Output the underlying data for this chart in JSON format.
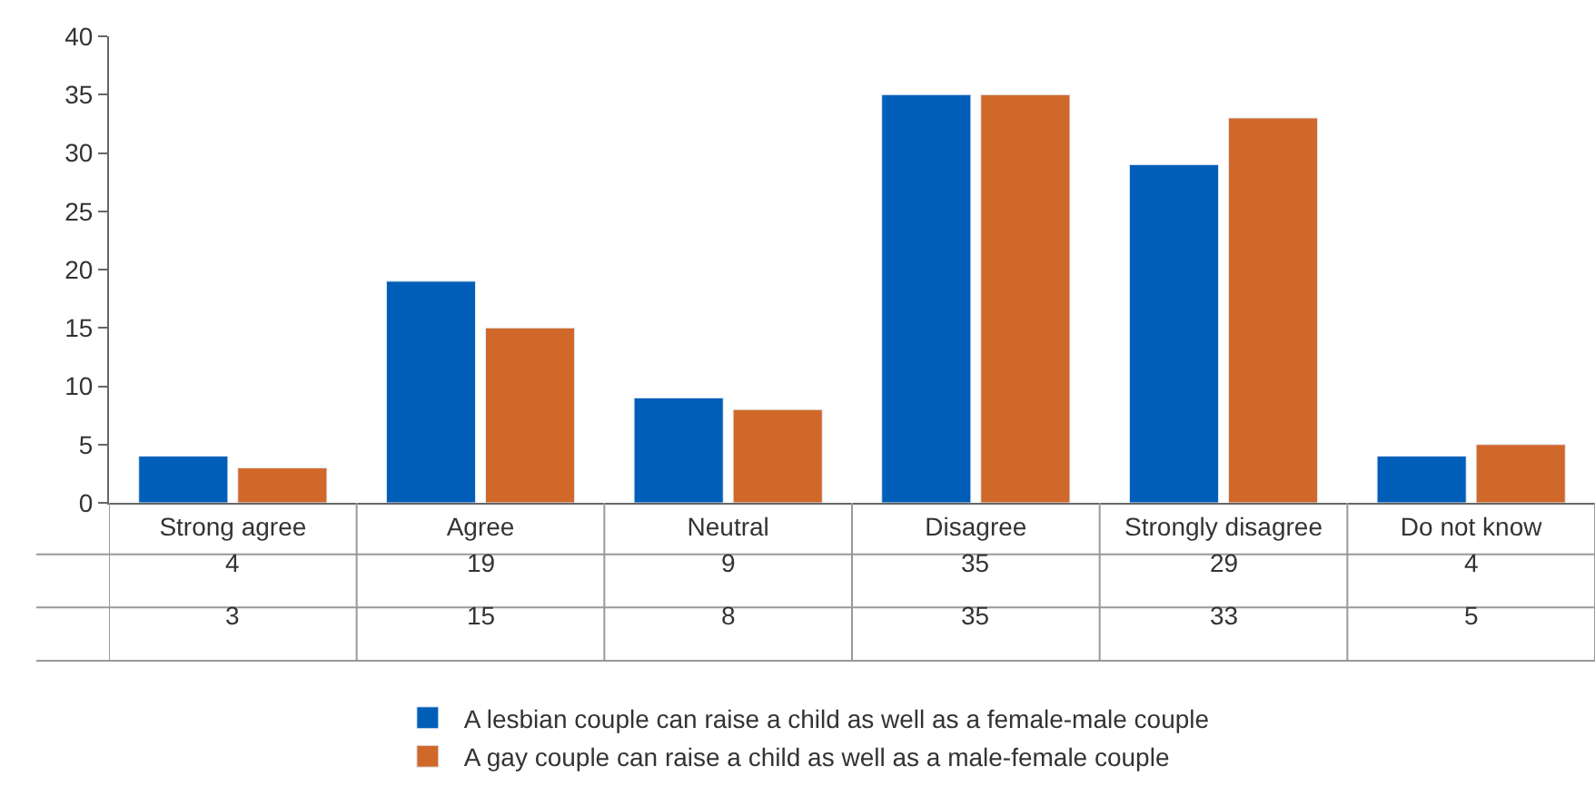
{
  "chart_data": {
    "type": "bar",
    "categories": [
      "Strong agree",
      "Agree",
      "Neutral",
      "Disagree",
      "Strongly disagree",
      "Do not know"
    ],
    "series": [
      {
        "name": "A lesbian couple can raise a child as well as a female-male couple",
        "color": "#005eb8",
        "values": [
          4,
          19,
          9,
          35,
          29,
          4
        ]
      },
      {
        "name": "A gay couple can raise a child as well as a male-female couple",
        "color": "#d0682a",
        "values": [
          3,
          15,
          8,
          35,
          33,
          5
        ]
      }
    ],
    "ylim": [
      0,
      40
    ],
    "yticks": [
      0,
      5,
      10,
      15,
      20,
      25,
      30,
      35,
      40
    ],
    "data_labels": true,
    "legend": "bottom"
  }
}
